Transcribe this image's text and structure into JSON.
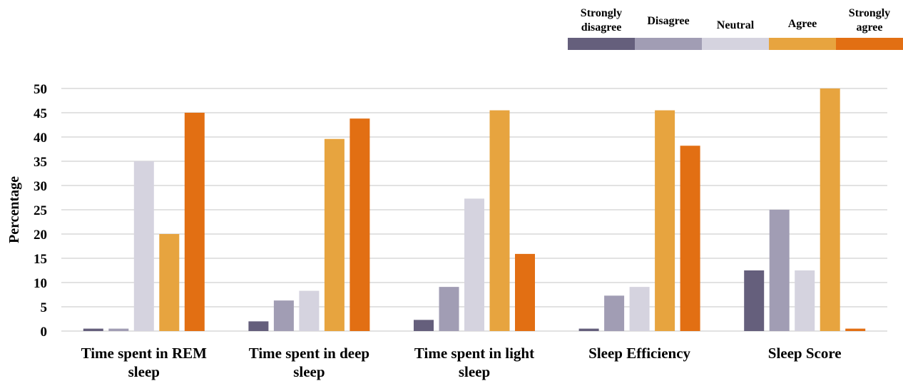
{
  "chart_data": {
    "type": "bar",
    "ylabel": "Percentage",
    "xlabel": "",
    "ylim": [
      0,
      50
    ],
    "yticks": [
      "0",
      "5",
      "10",
      "15",
      "20",
      "25",
      "30",
      "35",
      "40",
      "45",
      "50"
    ],
    "grid": true,
    "legend_position": "top-right",
    "categories": [
      [
        "Time spent in REM",
        "sleep"
      ],
      [
        "Time spent in deep",
        "sleep"
      ],
      [
        "Time spent in light",
        "sleep"
      ],
      [
        "Sleep Efficiency"
      ],
      [
        "Sleep Score"
      ]
    ],
    "series": [
      {
        "name": [
          "Strongly",
          "disagree"
        ],
        "color": "#655f7c",
        "values": [
          0.5,
          2,
          2.3,
          0.5,
          12.5
        ]
      },
      {
        "name": [
          "Disagree"
        ],
        "color": "#a19db4",
        "values": [
          0.5,
          6.3,
          9.1,
          7.3,
          25
        ]
      },
      {
        "name": [
          "Neutral"
        ],
        "color": "#d5d3df",
        "values": [
          35,
          8.3,
          27.3,
          9.1,
          12.5
        ]
      },
      {
        "name": [
          "Agree"
        ],
        "color": "#e7a43f",
        "values": [
          20,
          39.6,
          45.5,
          45.5,
          50
        ]
      },
      {
        "name": [
          "Strongly",
          "agree"
        ],
        "color": "#e26f13",
        "values": [
          45,
          43.8,
          15.9,
          38.2,
          0.5
        ]
      }
    ]
  }
}
